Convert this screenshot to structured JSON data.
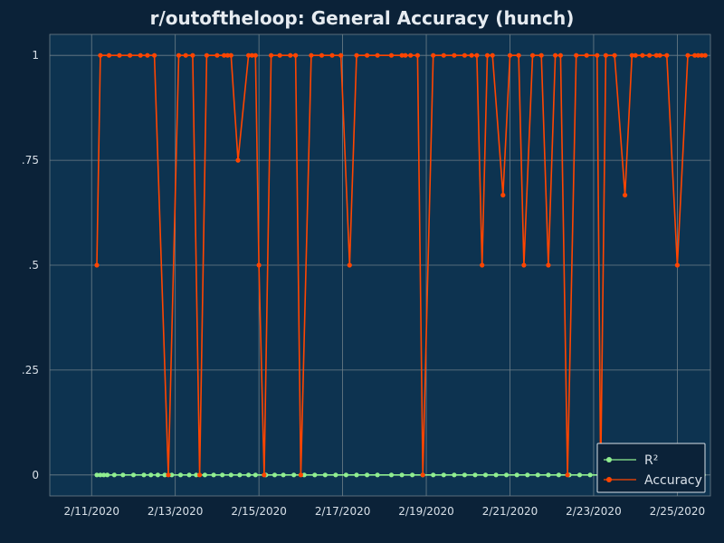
{
  "chart_data": {
    "type": "line",
    "title": "r/outoftheloop: General Accuracy (hunch)",
    "xlabel": "",
    "ylabel": "",
    "x_ticks": [
      "2/11/2020",
      "2/13/2020",
      "2/15/2020",
      "2/17/2020",
      "2/19/2020",
      "2/21/2020",
      "2/23/2020",
      "2/25/2020"
    ],
    "y_ticks": [
      "0",
      ".25",
      ".5",
      ".75",
      "1"
    ],
    "y_tick_values": [
      0,
      0.25,
      0.5,
      0.75,
      1
    ],
    "xlim": [
      "2/10/2020",
      "2/25/2020 19:00"
    ],
    "ylim": [
      -0.05,
      1.05
    ],
    "grid": true,
    "legend_position": "bottom-right",
    "legend": [
      "R²",
      "Accuracy"
    ],
    "colors": {
      "background": "#0b2238",
      "plot_background": "#0d3350",
      "grid": "#6e7f88",
      "text": "#d8e0e8",
      "title": "#e6ebf0",
      "r2": "#90ee90",
      "accuracy": "#ff4500"
    },
    "series": [
      {
        "name": "R²",
        "color": "#90ee90",
        "x": [
          "2/11/2020 03:00",
          "2/11/2020 05:00",
          "2/11/2020 07:00",
          "2/11/2020 09:00",
          "2/11/2020 13:00",
          "2/11/2020 18:00",
          "2/12/2020 00:00",
          "2/12/2020 06:00",
          "2/12/2020 10:00",
          "2/12/2020 14:00",
          "2/12/2020 18:00",
          "2/12/2020 22:00",
          "2/13/2020 03:00",
          "2/13/2020 08:00",
          "2/13/2020 12:00",
          "2/13/2020 17:00",
          "2/13/2020 22:00",
          "2/14/2020 03:00",
          "2/14/2020 08:00",
          "2/14/2020 13:00",
          "2/14/2020 18:00",
          "2/14/2020 22:00",
          "2/15/2020 04:00",
          "2/15/2020 09:00",
          "2/15/2020 14:00",
          "2/15/2020 20:00",
          "2/16/2020 02:00",
          "2/16/2020 08:00",
          "2/16/2020 14:00",
          "2/16/2020 20:00",
          "2/17/2020 02:00",
          "2/17/2020 08:00",
          "2/17/2020 14:00",
          "2/17/2020 20:00",
          "2/18/2020 04:00",
          "2/18/2020 10:00",
          "2/18/2020 16:00",
          "2/18/2020 22:00",
          "2/19/2020 04:00",
          "2/19/2020 10:00",
          "2/19/2020 16:00",
          "2/19/2020 22:00",
          "2/20/2020 04:00",
          "2/20/2020 10:00",
          "2/20/2020 16:00",
          "2/20/2020 22:00",
          "2/21/2020 04:00",
          "2/21/2020 10:00",
          "2/21/2020 16:00",
          "2/21/2020 22:00",
          "2/22/2020 04:00",
          "2/22/2020 10:00",
          "2/22/2020 16:00",
          "2/22/2020 22:00",
          "2/23/2020 04:00",
          "2/23/2020 10:00",
          "2/23/2020 16:00",
          "2/23/2020 22:00",
          "2/24/2020 04:00",
          "2/24/2020 10:00",
          "2/24/2020 16:00",
          "2/24/2020 22:00",
          "2/25/2020 04:00",
          "2/25/2020 10:00",
          "2/25/2020 15:00"
        ],
        "values": [
          0,
          0,
          0,
          0,
          0,
          0,
          0,
          0,
          0,
          0,
          0,
          0,
          0,
          0,
          0,
          0,
          0,
          0,
          0,
          0,
          0,
          0,
          0,
          0,
          0,
          0,
          0,
          0,
          0,
          0,
          0,
          0,
          0,
          0,
          0,
          0,
          0,
          0,
          0,
          0,
          0,
          0,
          0,
          0,
          0,
          0,
          0,
          0,
          0,
          0,
          0,
          0,
          0,
          0,
          0,
          0,
          0,
          0,
          0,
          0,
          0,
          0,
          0,
          0,
          0
        ]
      },
      {
        "name": "Accuracy",
        "color": "#ff4500",
        "x": [
          "2/11/2020 03:00",
          "2/11/2020 05:00",
          "2/11/2020 10:00",
          "2/11/2020 16:00",
          "2/11/2020 22:00",
          "2/12/2020 04:00",
          "2/12/2020 08:00",
          "2/12/2020 12:00",
          "2/12/2020 20:00",
          "2/13/2020 02:00",
          "2/13/2020 06:00",
          "2/13/2020 10:00",
          "2/13/2020 14:00",
          "2/13/2020 18:00",
          "2/14/2020 00:00",
          "2/14/2020 04:00",
          "2/14/2020 06:00",
          "2/14/2020 08:00",
          "2/14/2020 12:00",
          "2/14/2020 18:00",
          "2/14/2020 20:00",
          "2/14/2020 22:00",
          "2/15/2020 00:00",
          "2/15/2020 03:00",
          "2/15/2020 07:00",
          "2/15/2020 12:00",
          "2/15/2020 18:00",
          "2/15/2020 21:00",
          "2/16/2020 00:00",
          "2/16/2020 06:00",
          "2/16/2020 12:00",
          "2/16/2020 18:00",
          "2/16/2020 23:00",
          "2/17/2020 04:00",
          "2/17/2020 08:00",
          "2/17/2020 14:00",
          "2/17/2020 20:00",
          "2/18/2020 04:00",
          "2/18/2020 10:00",
          "2/18/2020 12:00",
          "2/18/2020 15:00",
          "2/18/2020 19:00",
          "2/18/2020 22:00",
          "2/19/2020 04:00",
          "2/19/2020 10:00",
          "2/19/2020 16:00",
          "2/19/2020 22:00",
          "2/20/2020 02:00",
          "2/20/2020 05:00",
          "2/20/2020 08:00",
          "2/20/2020 11:00",
          "2/20/2020 14:00",
          "2/20/2020 20:00",
          "2/21/2020 00:00",
          "2/21/2020 05:00",
          "2/21/2020 08:00",
          "2/21/2020 13:00",
          "2/21/2020 18:00",
          "2/21/2020 22:00",
          "2/22/2020 02:00",
          "2/22/2020 05:00",
          "2/22/2020 09:00",
          "2/22/2020 14:00",
          "2/22/2020 20:00",
          "2/23/2020 02:00",
          "2/23/2020 04:00",
          "2/23/2020 07:00",
          "2/23/2020 12:00",
          "2/23/2020 18:00",
          "2/23/2020 22:00",
          "2/24/2020 00:00",
          "2/24/2020 04:00",
          "2/24/2020 08:00",
          "2/24/2020 12:00",
          "2/24/2020 14:00",
          "2/24/2020 18:00",
          "2/25/2020 00:00",
          "2/25/2020 06:00",
          "2/25/2020 10:00",
          "2/25/2020 12:00",
          "2/25/2020 14:00",
          "2/25/2020 16:00"
        ],
        "values": [
          0.5,
          1,
          1,
          1,
          1,
          1,
          1,
          1,
          0,
          1,
          1,
          1,
          0,
          1,
          1,
          1,
          1,
          1,
          0.75,
          1,
          1,
          1,
          0.5,
          0,
          1,
          1,
          1,
          1,
          0,
          1,
          1,
          1,
          1,
          0.5,
          1,
          1,
          1,
          1,
          1,
          1,
          1,
          1,
          0,
          1,
          1,
          1,
          1,
          1,
          1,
          0.5,
          1,
          1,
          0.667,
          1,
          1,
          0.5,
          1,
          1,
          0.5,
          1,
          1,
          0,
          1,
          1,
          1,
          0,
          1,
          1,
          0.667,
          1,
          1,
          1,
          1,
          1,
          1,
          1,
          0.5,
          1,
          1,
          1,
          1,
          1
        ]
      }
    ]
  }
}
